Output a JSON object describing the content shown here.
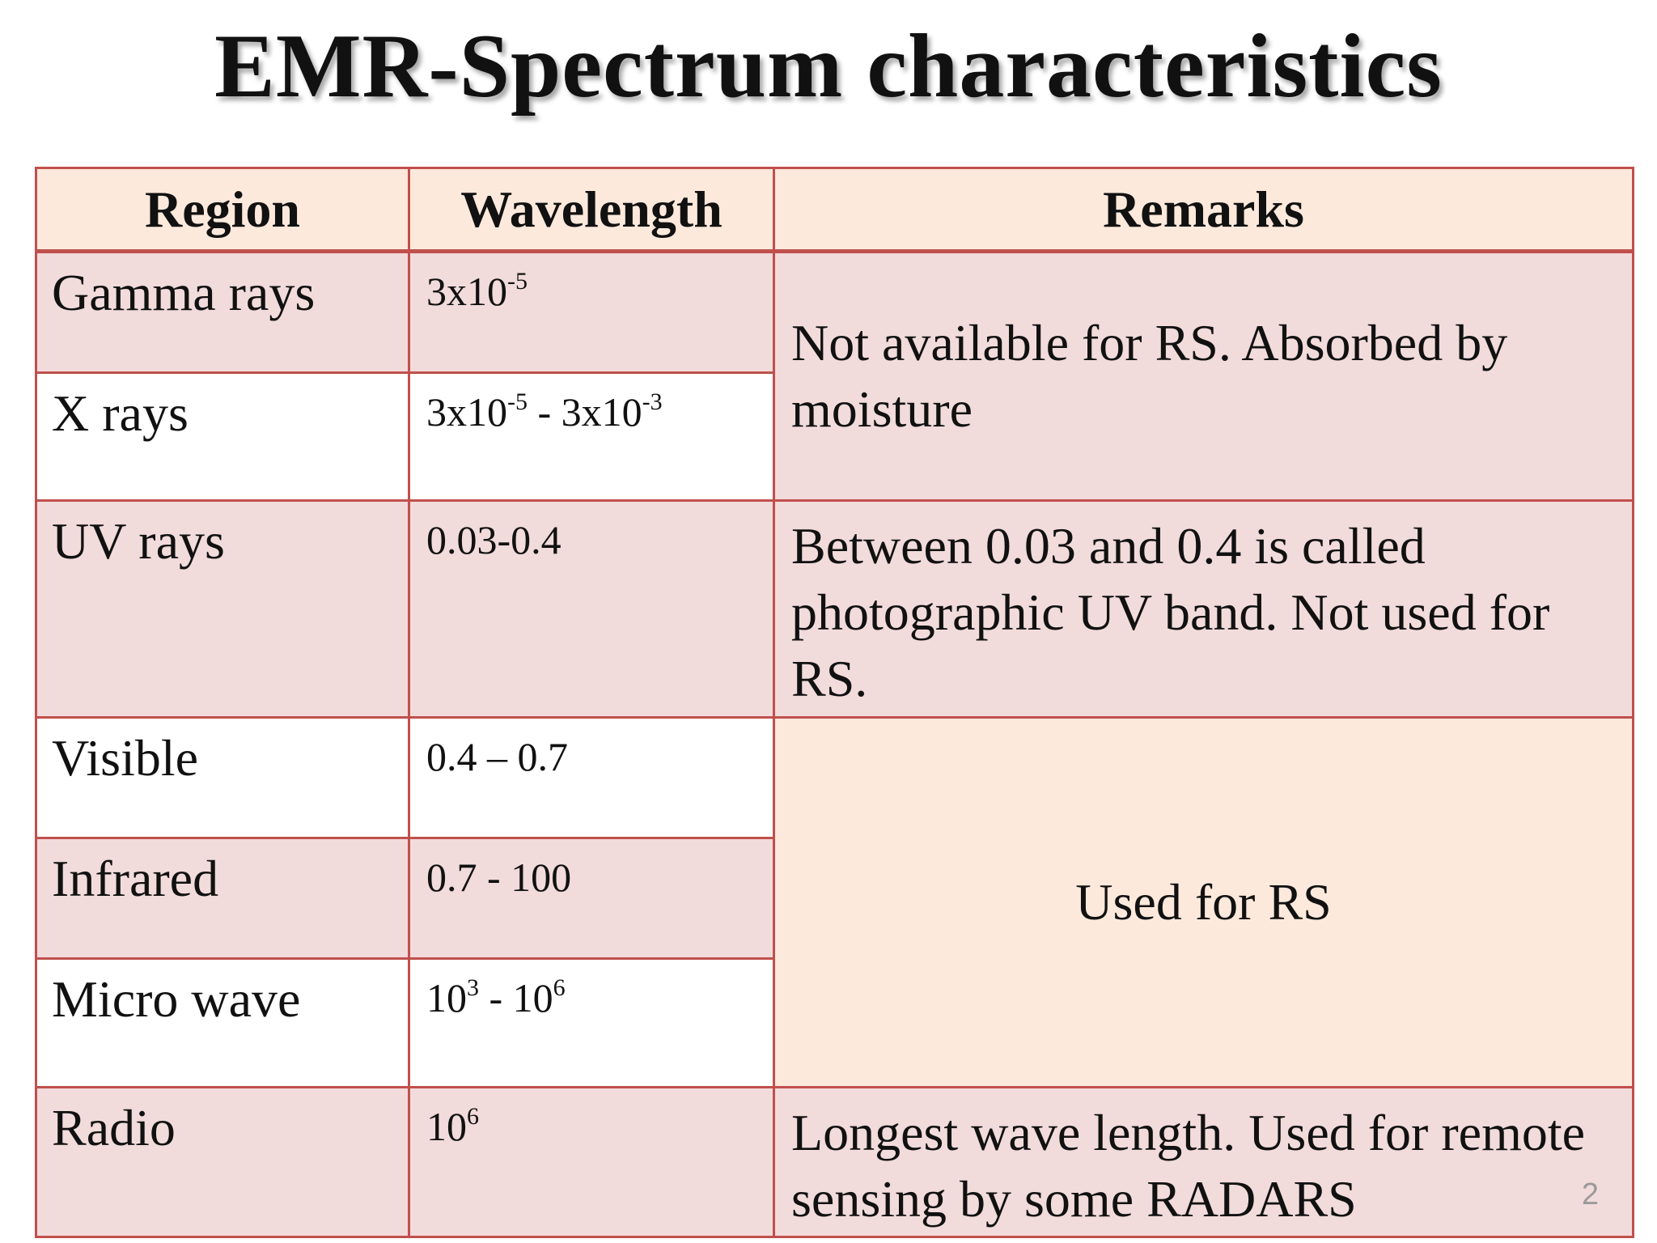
{
  "title": "EMR-Spectrum characteristics",
  "table": {
    "headers": [
      "Region",
      "Wavelength",
      "Remarks"
    ],
    "rows": [
      {
        "region": "Gamma rays",
        "wavelength_base": "3x10",
        "wavelength_exp": "-5"
      },
      {
        "region": "X rays",
        "wavelength_base": "3x10",
        "wavelength_exp": "-5",
        "wavelength_sep": " - 3x10",
        "wavelength_exp2": "-3"
      },
      {
        "region": "UV rays",
        "wavelength": "0.03-0.4"
      },
      {
        "region": "Visible",
        "wavelength": "0.4 – 0.7"
      },
      {
        "region": "Infrared",
        "wavelength": "0.7 - 100"
      },
      {
        "region": "Micro wave",
        "wavelength_base": "10",
        "wavelength_exp": "3",
        "wavelength_sep": " - 10",
        "wavelength_exp2": "6"
      },
      {
        "region": "Radio",
        "wavelength_base": "10",
        "wavelength_exp": "6"
      }
    ],
    "remarks": {
      "gamma_x": "Not available for RS. Absorbed by moisture",
      "uv": "Between 0.03 and 0.4 is called photographic UV band. Not used for RS.",
      "visible_micro": "Used for RS",
      "radio": "Longest wave length. Used for remote sensing by some RADARS"
    }
  },
  "slide_number": "2",
  "colors": {
    "border": "#c0504d",
    "header_fill": "#fde9dc",
    "pink_fill": "#f2dbdb",
    "peach_fill": "#fde9dc",
    "white_fill": "#ffffff"
  }
}
